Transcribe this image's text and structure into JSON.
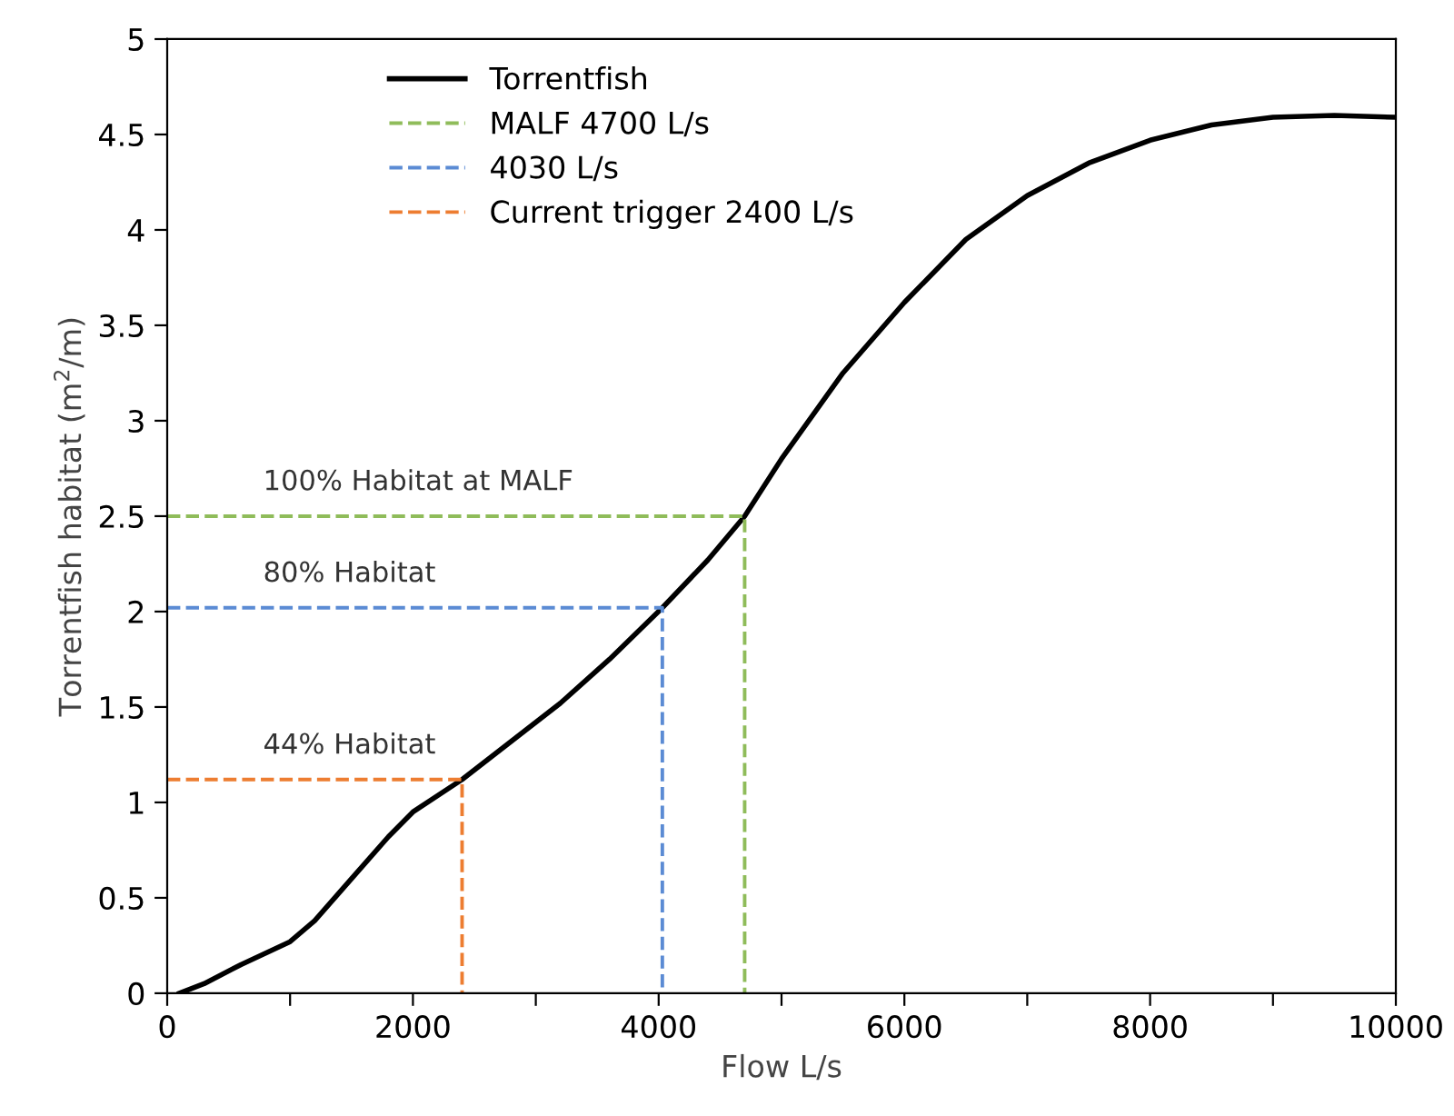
{
  "chart_data": {
    "type": "line",
    "xlabel": "Flow L/s",
    "ylabel": "Torrentfish habitat (m$^{2}$/m)",
    "xlim": [
      0,
      10000
    ],
    "ylim": [
      0,
      5
    ],
    "xticks": [
      0,
      {
        "value": 1000,
        "label": null
      },
      2000,
      {
        "value": 3000,
        "label": null
      },
      4000,
      {
        "value": 5000,
        "label": null
      },
      6000,
      {
        "value": 7000,
        "label": null
      },
      8000,
      {
        "value": 9000,
        "label": null
      },
      10000
    ],
    "yticks": [
      0,
      0.5,
      1,
      1.5,
      2,
      2.5,
      3,
      3.5,
      4,
      4.5,
      5
    ],
    "grid": false,
    "legend": "top",
    "marker": "none",
    "series": [
      {
        "name": "Torrentfish",
        "color": "#000000",
        "line_style": "solid",
        "x": [
          100,
          300,
          600,
          1000,
          1200,
          1500,
          1800,
          2000,
          2400,
          2800,
          3200,
          3600,
          4030,
          4400,
          4700,
          5000,
          5500,
          6000,
          6500,
          7000,
          7500,
          8000,
          8500,
          9000,
          9500,
          10000
        ],
        "values": [
          0,
          0.05,
          0.15,
          0.27,
          0.38,
          0.6,
          0.82,
          0.95,
          1.12,
          1.32,
          1.52,
          1.75,
          2.02,
          2.27,
          2.5,
          2.8,
          3.25,
          3.62,
          3.95,
          4.18,
          4.35,
          4.47,
          4.55,
          4.59,
          4.6,
          4.59
        ]
      },
      {
        "name": "MALF 4700 L/s",
        "color": "#8fbc5a",
        "line_style": "dashed",
        "x": [
          0,
          4700,
          4700
        ],
        "values": [
          2.5,
          2.5,
          0
        ]
      },
      {
        "name": "4030 L/s",
        "color": "#5b8bd4",
        "line_style": "dashed",
        "x": [
          0,
          4030,
          4030
        ],
        "values": [
          2.02,
          2.02,
          0
        ]
      },
      {
        "name": "Current trigger 2400 L/s",
        "color": "#ed7d31",
        "line_style": "dashed",
        "x": [
          0,
          2400,
          2400
        ],
        "values": [
          1.12,
          1.12,
          0
        ]
      }
    ],
    "annotations": [
      "100% Habitat at MALF",
      "80% Habitat",
      "44% Habitat"
    ]
  }
}
